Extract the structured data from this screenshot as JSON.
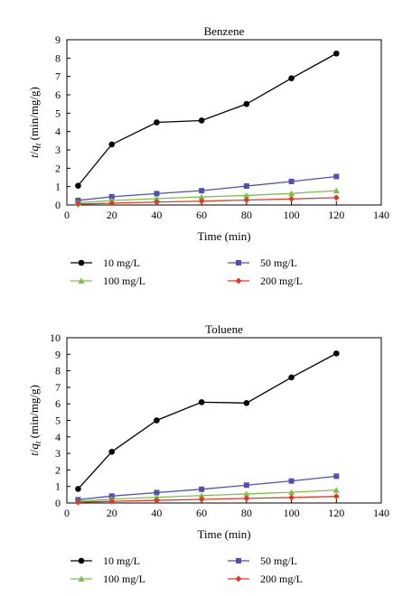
{
  "chart_data": [
    {
      "type": "line",
      "title": "Benzene",
      "xlabel": "Time (min)",
      "ylabel_main": "t",
      "ylabel_sep": "/",
      "ylabel_q": "q",
      "ylabel_sub": "t",
      "ylabel_unit": " (min/mg/g)",
      "xlim": [
        0,
        140
      ],
      "ylim": [
        0,
        9
      ],
      "xticks": [
        0,
        20,
        40,
        60,
        80,
        100,
        120,
        140
      ],
      "yticks": [
        0,
        1,
        2,
        3,
        4,
        5,
        6,
        7,
        8,
        9
      ],
      "grid": false,
      "legend_position": "bottom",
      "x": [
        5,
        20,
        40,
        60,
        80,
        100,
        120
      ],
      "series": [
        {
          "name": "10 mg/L",
          "color": "#000000",
          "marker": "circle",
          "values": [
            1.05,
            3.3,
            4.5,
            4.6,
            5.5,
            6.9,
            8.25
          ]
        },
        {
          "name": "50 mg/L",
          "color": "#5050b4",
          "marker": "square",
          "values": [
            0.25,
            0.45,
            0.62,
            0.78,
            1.03,
            1.28,
            1.55
          ]
        },
        {
          "name": "100 mg/L",
          "color": "#7cc04a",
          "marker": "triangle",
          "values": [
            0.12,
            0.24,
            0.35,
            0.44,
            0.52,
            0.63,
            0.78
          ]
        },
        {
          "name": "200 mg/L",
          "color": "#e03a25",
          "marker": "diamond",
          "values": [
            0.05,
            0.1,
            0.16,
            0.21,
            0.27,
            0.33,
            0.4
          ]
        }
      ]
    },
    {
      "type": "line",
      "title": "Toluene",
      "xlabel": "Time (min)",
      "ylabel_main": "t",
      "ylabel_sep": "/",
      "ylabel_q": "q",
      "ylabel_sub": "t",
      "ylabel_unit": " (min/mg/g)",
      "xlim": [
        0,
        140
      ],
      "ylim": [
        0,
        10
      ],
      "xticks": [
        0,
        20,
        40,
        60,
        80,
        100,
        120,
        140
      ],
      "yticks": [
        0,
        1,
        2,
        3,
        4,
        5,
        6,
        7,
        8,
        9,
        10
      ],
      "grid": false,
      "legend_position": "bottom",
      "x": [
        5,
        20,
        40,
        60,
        80,
        100,
        120
      ],
      "series": [
        {
          "name": "10 mg/L",
          "color": "#000000",
          "marker": "circle",
          "values": [
            0.85,
            3.1,
            5.0,
            6.1,
            6.05,
            7.6,
            9.05
          ]
        },
        {
          "name": "50 mg/L",
          "color": "#5050b4",
          "marker": "square",
          "values": [
            0.2,
            0.42,
            0.63,
            0.83,
            1.08,
            1.33,
            1.62
          ]
        },
        {
          "name": "100 mg/L",
          "color": "#7cc04a",
          "marker": "triangle",
          "values": [
            0.1,
            0.23,
            0.35,
            0.45,
            0.55,
            0.65,
            0.78
          ]
        },
        {
          "name": "200 mg/L",
          "color": "#e03a25",
          "marker": "diamond",
          "values": [
            0.05,
            0.1,
            0.16,
            0.22,
            0.28,
            0.33,
            0.4
          ]
        }
      ]
    }
  ]
}
